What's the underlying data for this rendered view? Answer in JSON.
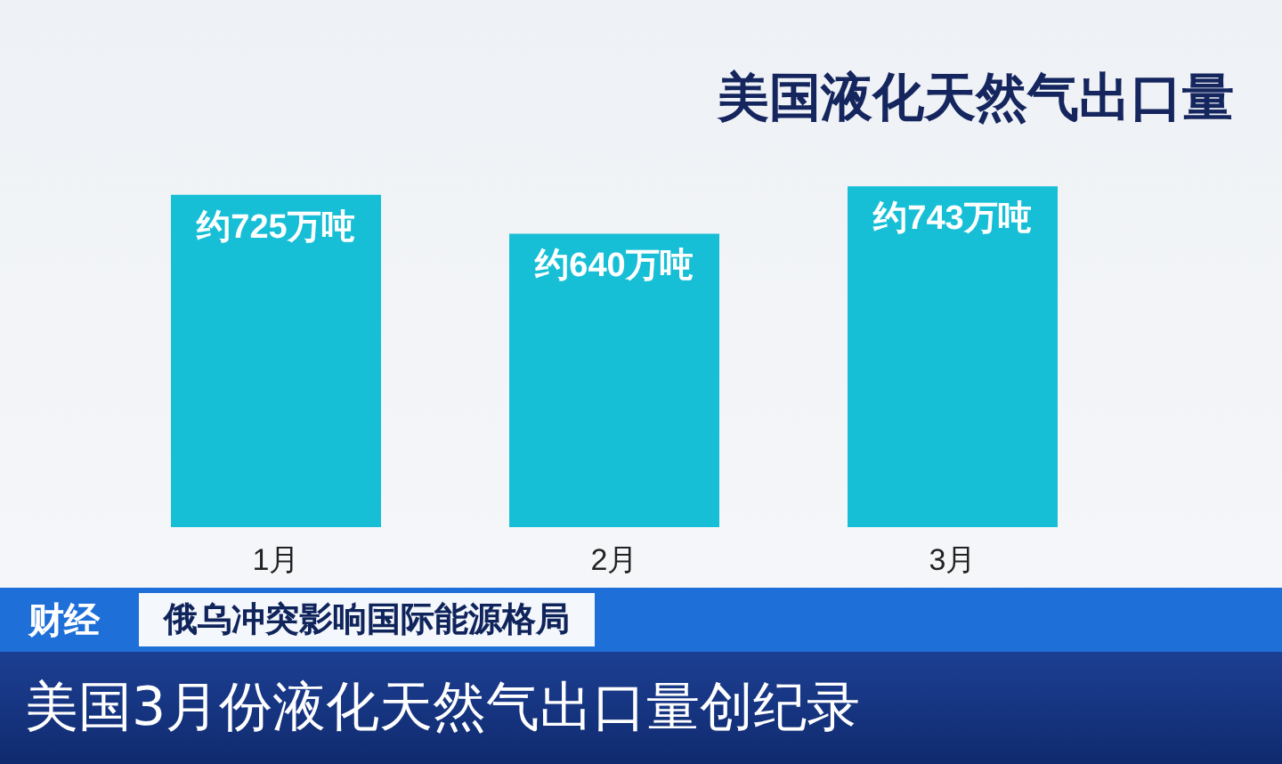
{
  "chart_data": {
    "type": "bar",
    "title": "美国液化天然气出口量",
    "categories": [
      "1月",
      "2月",
      "3月"
    ],
    "values": [
      725,
      640,
      743
    ],
    "value_labels": [
      "约725万吨",
      "约640万吨",
      "约743万吨"
    ],
    "color": "#17bfd6",
    "annotations": [
      "财经",
      "俄乌冲突影响国际能源格局",
      "美国3月份液化天然气出口量创纪录"
    ]
  }
}
